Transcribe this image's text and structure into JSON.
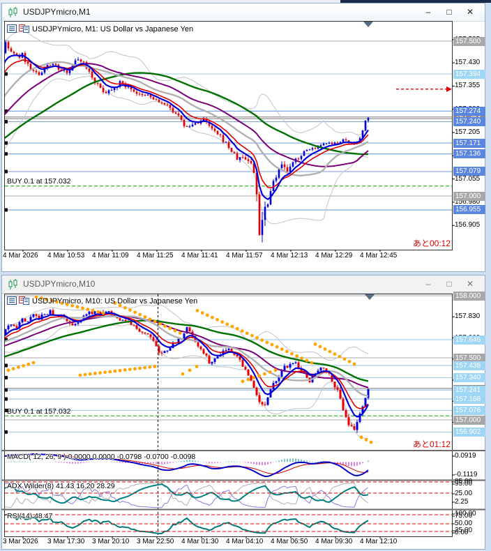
{
  "app": {
    "controls": {
      "minimize": "–",
      "maximize": "□",
      "close": "✕"
    },
    "colors": {
      "up": "#0000e0",
      "down": "#e80000",
      "sar": "#ffa500",
      "ma_fast": "#0000d8",
      "ma_slow": "#e00000",
      "ma_mid": "#b0b0b0",
      "ma_purple": "#7a007a",
      "ma_green": "#007000",
      "band": "#c4c4c4",
      "round_level": "#a8a8a8",
      "bid_line": "#787878",
      "alert_line": "#7fa8e0",
      "alert2_line": "#a6cdec",
      "alert_bg": "#5a86e0",
      "alert2_bg": "#9fd5f5",
      "round_bg": "#a8a8a8",
      "bid_bg": "#8c8c8c",
      "buy_line": "#00a800",
      "countdown": "#e00000"
    }
  },
  "windows": [
    {
      "title": "USDJPYmicro,M1",
      "active": true,
      "header": "USDJPYmicro, M1:  US Dollar vs Japanese Yen",
      "buy_label": "BUY 0.1 at 157.032",
      "countdown": "あと00:12"
    },
    {
      "title": "USDJPYmicro,M10",
      "active": false,
      "header": "USDJPYmicro, M10:  US Dollar vs Japanese Yen",
      "buy_label": "BUY 0.1 at 157.032",
      "countdown": "あと01:12",
      "indicator_labels": [
        "MACD( 12, 26, 9 ) 0.0000 0.0000 -0.0798 -0.0700 -0.0098",
        "ADX Wilder(8) 41.43 16.20 28.29",
        "RSI(14) 48.47"
      ]
    }
  ],
  "chart_data": [
    {
      "type": "candlestick",
      "symbol": "USDJPYmicro",
      "timeframe": "M1",
      "title": "USDJPYmicro, M1: US Dollar vs Japanese Yen",
      "ylim": [
        156.86,
        157.56
      ],
      "time_labels": [
        "4 Mar 2026",
        "4 Mar 10:53",
        "4 Mar 11:09",
        "4 Mar 11:25",
        "4 Mar 11:41",
        "4 Mar 11:57",
        "4 Mar 12:13",
        "4 Mar 12:29",
        "4 Mar 12:45"
      ],
      "axis_ticks": [
        157.505,
        157.43,
        157.355,
        157.28,
        157.205,
        157.13,
        157.055,
        156.98,
        156.905
      ],
      "price_labels": [
        {
          "text": "157.253",
          "price": 157.2525,
          "kind": "bid"
        },
        {
          "text": "157.500",
          "price": 157.5,
          "kind": "round"
        },
        {
          "text": "157.000",
          "price": 157.0,
          "kind": "round"
        },
        {
          "text": "157.394",
          "price": 157.394,
          "kind": "alert2"
        },
        {
          "text": "157.274",
          "price": 157.274,
          "kind": "alert"
        },
        {
          "text": "157.240",
          "price": 157.24,
          "kind": "alert"
        },
        {
          "text": "157.171",
          "price": 157.171,
          "kind": "alert"
        },
        {
          "text": "157.136",
          "price": 157.136,
          "kind": "alert"
        },
        {
          "text": "157.079",
          "price": 157.079,
          "kind": "alert"
        },
        {
          "text": "156.955",
          "price": 156.955,
          "kind": "alert"
        }
      ],
      "buy_price": 157.032,
      "bid_price": 157.2525,
      "arrow": {
        "price": 157.345,
        "x1": 568
      },
      "marker_x": 528,
      "price_path": [
        [
          -240,
          157.05
        ],
        [
          -160,
          157.08
        ],
        [
          -120,
          157.12
        ],
        [
          -80,
          157.2
        ],
        [
          -40,
          157.32
        ],
        [
          0,
          157.44
        ],
        [
          8,
          157.49
        ],
        [
          16,
          157.465
        ],
        [
          24,
          157.45
        ],
        [
          32,
          157.455
        ],
        [
          42,
          157.415
        ],
        [
          50,
          157.4
        ],
        [
          58,
          157.385
        ],
        [
          66,
          157.42
        ],
        [
          74,
          157.43
        ],
        [
          82,
          157.415
        ],
        [
          90,
          157.4
        ],
        [
          98,
          157.405
        ],
        [
          106,
          157.43
        ],
        [
          114,
          157.445
        ],
        [
          122,
          157.425
        ],
        [
          132,
          157.385
        ],
        [
          142,
          157.35
        ],
        [
          152,
          157.335
        ],
        [
          162,
          157.35
        ],
        [
          172,
          157.365
        ],
        [
          182,
          157.355
        ],
        [
          192,
          157.34
        ],
        [
          202,
          157.32
        ],
        [
          212,
          157.325
        ],
        [
          222,
          157.31
        ],
        [
          232,
          157.3
        ],
        [
          242,
          157.285
        ],
        [
          252,
          157.27
        ],
        [
          260,
          157.24
        ],
        [
          268,
          157.22
        ],
        [
          276,
          157.23
        ],
        [
          284,
          157.24
        ],
        [
          292,
          157.245
        ],
        [
          300,
          157.225
        ],
        [
          308,
          157.205
        ],
        [
          316,
          157.19
        ],
        [
          324,
          157.17
        ],
        [
          332,
          157.145
        ],
        [
          340,
          157.12
        ],
        [
          348,
          157.125
        ],
        [
          356,
          157.115
        ],
        [
          362,
          157.1
        ],
        [
          368,
          157.01
        ],
        [
          372,
          156.89
        ],
        [
          376,
          156.93
        ],
        [
          381,
          156.97
        ],
        [
          386,
          157.0
        ],
        [
          391,
          157.045
        ],
        [
          396,
          157.07
        ],
        [
          401,
          157.1
        ],
        [
          406,
          157.095
        ],
        [
          411,
          157.08
        ],
        [
          416,
          157.09
        ],
        [
          421,
          157.11
        ],
        [
          428,
          157.125
        ],
        [
          436,
          157.14
        ],
        [
          444,
          157.155
        ],
        [
          452,
          157.15
        ],
        [
          460,
          157.16
        ],
        [
          468,
          157.17
        ],
        [
          476,
          157.165
        ],
        [
          484,
          157.175
        ],
        [
          492,
          157.18
        ],
        [
          500,
          157.17
        ],
        [
          508,
          157.17
        ],
        [
          514,
          157.185
        ],
        [
          519,
          157.2
        ],
        [
          523,
          157.24
        ],
        [
          526,
          157.26
        ],
        [
          528,
          157.253
        ]
      ],
      "vol_path": [
        [
          -240,
          0.014
        ],
        [
          350,
          0.014
        ],
        [
          360,
          0.022
        ],
        [
          366,
          0.05
        ],
        [
          376,
          0.045
        ],
        [
          386,
          0.028
        ],
        [
          400,
          0.02
        ],
        [
          430,
          0.013
        ],
        [
          460,
          0.009
        ],
        [
          528,
          0.011
        ]
      ]
    },
    {
      "type": "candlestick",
      "symbol": "USDJPYmicro",
      "timeframe": "M10",
      "title": "USDJPYmicro, M10: US Dollar vs Japanese Yen",
      "ylim": [
        156.8,
        158.02
      ],
      "time_labels": [
        "3 Mar 2026",
        "3 Mar 17:30",
        "3 Mar 20:10",
        "3 Mar 22:50",
        "4 Mar 01:30",
        "4 Mar 04:10",
        "4 Mar 06:50",
        "4 Mar 09:30",
        "4 Mar 12:10"
      ],
      "axis_ticks": [
        157.83,
        157.66,
        157.49,
        157.32,
        157.15,
        156.98
      ],
      "price_labels": [
        {
          "text": "157.247",
          "price": 157.247,
          "kind": "bid"
        },
        {
          "text": "158.000",
          "price": 158.0,
          "kind": "round"
        },
        {
          "text": "157.500",
          "price": 157.5,
          "kind": "round"
        },
        {
          "text": "157.000",
          "price": 157.0,
          "kind": "round"
        },
        {
          "text": "157.646",
          "price": 157.646,
          "kind": "alert2"
        },
        {
          "text": "157.438",
          "price": 157.438,
          "kind": "alert2"
        },
        {
          "text": "157.340",
          "price": 157.34,
          "kind": "alert2"
        },
        {
          "text": "157.241",
          "price": 157.241,
          "kind": "alert2"
        },
        {
          "text": "157.168",
          "price": 157.168,
          "kind": "alert2"
        },
        {
          "text": "157.076",
          "price": 157.076,
          "kind": "alert2"
        },
        {
          "text": "156.902",
          "price": 156.902,
          "kind": "alert2"
        }
      ],
      "buy_price": 157.032,
      "bid_price": 157.247,
      "marker_x": 530,
      "vline_x": 226,
      "price_path": [
        [
          -240,
          157.3
        ],
        [
          -160,
          157.4
        ],
        [
          -80,
          157.55
        ],
        [
          0,
          157.68
        ],
        [
          8,
          157.72
        ],
        [
          16,
          157.78
        ],
        [
          24,
          157.75
        ],
        [
          32,
          157.81
        ],
        [
          40,
          157.79
        ],
        [
          48,
          157.84
        ],
        [
          56,
          157.82
        ],
        [
          64,
          157.85
        ],
        [
          72,
          157.87
        ],
        [
          80,
          157.83
        ],
        [
          88,
          157.85
        ],
        [
          96,
          157.8
        ],
        [
          104,
          157.77
        ],
        [
          112,
          157.8
        ],
        [
          120,
          157.83
        ],
        [
          128,
          157.86
        ],
        [
          136,
          157.87
        ],
        [
          144,
          157.84
        ],
        [
          152,
          157.88
        ],
        [
          160,
          157.86
        ],
        [
          168,
          157.83
        ],
        [
          176,
          157.8
        ],
        [
          184,
          157.78
        ],
        [
          192,
          157.75
        ],
        [
          200,
          157.72
        ],
        [
          208,
          157.7
        ],
        [
          216,
          157.68
        ],
        [
          224,
          157.6
        ],
        [
          230,
          157.52
        ],
        [
          238,
          157.56
        ],
        [
          246,
          157.6
        ],
        [
          254,
          157.63
        ],
        [
          262,
          157.68
        ],
        [
          270,
          157.75
        ],
        [
          278,
          157.65
        ],
        [
          286,
          157.58
        ],
        [
          294,
          157.52
        ],
        [
          302,
          157.45
        ],
        [
          310,
          157.5
        ],
        [
          318,
          157.55
        ],
        [
          326,
          157.58
        ],
        [
          334,
          157.55
        ],
        [
          342,
          157.5
        ],
        [
          350,
          157.42
        ],
        [
          358,
          157.33
        ],
        [
          366,
          157.25
        ],
        [
          372,
          157.15
        ],
        [
          378,
          157.1
        ],
        [
          384,
          157.17
        ],
        [
          390,
          157.26
        ],
        [
          396,
          157.33
        ],
        [
          402,
          157.38
        ],
        [
          408,
          157.42
        ],
        [
          414,
          157.44
        ],
        [
          420,
          157.47
        ],
        [
          426,
          157.44
        ],
        [
          432,
          157.4
        ],
        [
          438,
          157.35
        ],
        [
          444,
          157.31
        ],
        [
          450,
          157.36
        ],
        [
          456,
          157.4
        ],
        [
          462,
          157.44
        ],
        [
          468,
          157.4
        ],
        [
          474,
          157.35
        ],
        [
          480,
          157.28
        ],
        [
          486,
          157.2
        ],
        [
          492,
          157.1
        ],
        [
          498,
          157.0
        ],
        [
          503,
          156.94
        ],
        [
          507,
          156.9
        ],
        [
          511,
          156.97
        ],
        [
          515,
          157.04
        ],
        [
          519,
          157.1
        ],
        [
          523,
          157.17
        ],
        [
          526,
          157.22
        ],
        [
          528,
          157.247
        ]
      ],
      "vol_path": [
        [
          -240,
          0.03
        ],
        [
          216,
          0.03
        ],
        [
          224,
          0.05
        ],
        [
          240,
          0.035
        ],
        [
          340,
          0.03
        ],
        [
          350,
          0.04
        ],
        [
          380,
          0.04
        ],
        [
          420,
          0.03
        ],
        [
          475,
          0.035
        ],
        [
          490,
          0.05
        ],
        [
          510,
          0.05
        ],
        [
          520,
          0.035
        ],
        [
          528,
          0.03
        ]
      ],
      "sar_chains": [
        [
          12,
          48,
          157.4,
          157.46
        ],
        [
          52,
          148,
          157.99,
          157.86
        ],
        [
          115,
          222,
          157.36,
          157.43
        ],
        [
          165,
          258,
          157.94,
          157.7
        ],
        [
          262,
          282,
          157.37,
          157.43
        ],
        [
          283,
          447,
          157.88,
          157.46
        ],
        [
          348,
          395,
          157.31,
          157.4
        ],
        [
          452,
          508,
          157.61,
          157.45
        ],
        [
          518,
          532,
          156.86,
          156.82
        ]
      ],
      "indicators": [
        {
          "name": "MACD",
          "params": "12, 26, 9",
          "values": [
            "0.0000",
            "0.0000",
            "-0.0798",
            "-0.0700",
            "-0.0098"
          ],
          "scale_labels": [
            {
              "text": "0.0919",
              "y": 654
            },
            {
              "text": "-0.1119",
              "y": 681
            }
          ]
        },
        {
          "name": "ADX Wilder",
          "params": "8",
          "values": [
            "41.43",
            "16.20",
            "28.29"
          ],
          "scale_labels": [
            {
              "text": "85.00",
              "y": 691
            },
            {
              "text": "95.00",
              "y": 694
            },
            {
              "text": "25.00",
              "y": 708
            },
            {
              "text": "2.25",
              "y": 720
            }
          ],
          "dashed_levels_y": [
            691,
            707
          ]
        },
        {
          "name": "RSI",
          "params": "14",
          "values": [
            "48.47"
          ],
          "scale_labels": [
            {
              "text": "100.00",
              "y": 737
            },
            {
              "text": "75.00",
              "y": 740
            },
            {
              "text": "50.00",
              "y": 751
            },
            {
              "text": "25.00",
              "y": 761
            },
            {
              "text": "0.00",
              "y": 764
            }
          ],
          "dashed_levels_y": [
            738,
            751,
            762
          ]
        }
      ]
    }
  ]
}
